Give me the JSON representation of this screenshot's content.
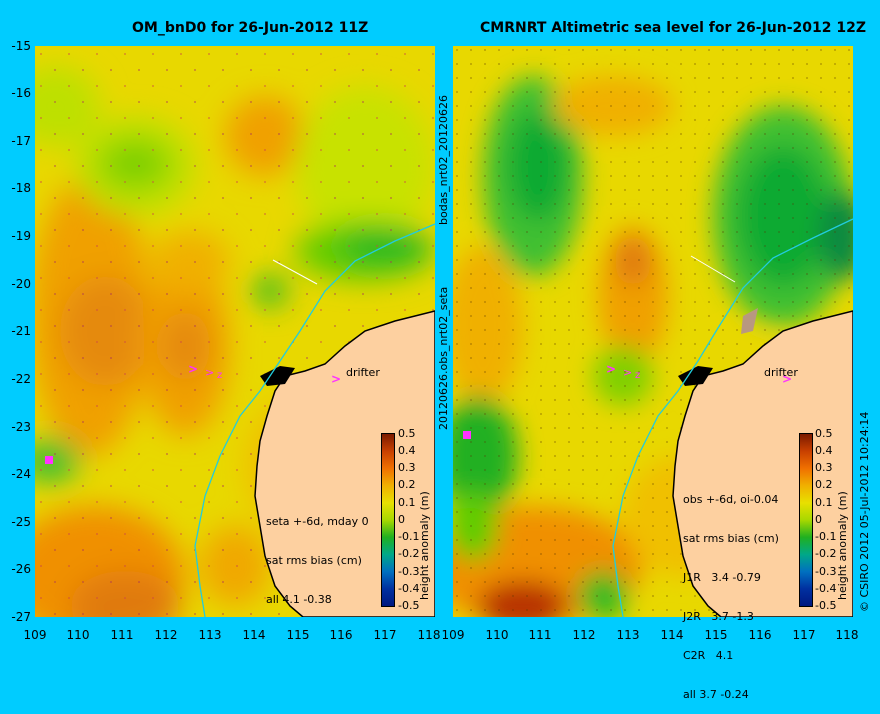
{
  "left_panel": {
    "title": "OM_bnD0 for 26-Jun-2012 11Z",
    "annotations": [
      "seta +-6d, mday 0",
      "sat rms bias (cm)",
      "all 4.1 -0.38"
    ],
    "drifter_label": "drifter"
  },
  "right_panel": {
    "title": "CMRNRT Altimetric sea level  for 26-Jun-2012 12Z",
    "annotations": [
      "obs +-6d, oi-0.04",
      "sat rms bias (cm)",
      "J1R   3.4 -0.79",
      "J2R   3.7 -1.3",
      "C2R   4.1",
      "all 3.7 -0.24"
    ],
    "drifter_label": "drifter"
  },
  "y_ticks": [
    "-15",
    "-16",
    "-17",
    "-18",
    "-19",
    "-20",
    "-21",
    "-22",
    "-23",
    "-24",
    "-25",
    "-26",
    "-27"
  ],
  "x_ticks": [
    "109",
    "110",
    "111",
    "112",
    "113",
    "114",
    "115",
    "116",
    "117",
    "118"
  ],
  "colorbar": {
    "title": "height anomaly (m)",
    "ticks": [
      "0.5",
      "0.4",
      "0.3",
      "0.2",
      "0.1",
      "0",
      "-0.1",
      "-0.2",
      "-0.3",
      "-0.4",
      "-0.5"
    ]
  },
  "side_labels": {
    "middle_top": "bodas_nrt02_20120626",
    "middle_bottom": "20120626.obs_nrt02_seta",
    "right": "© CSIRO 2012   05-Jul-2012 10:24:14"
  },
  "colors": {
    "background": "#00ccff",
    "land": "#fdd0a0",
    "coast_track": "#22ccdd",
    "drifter_marker": "#ff33ff"
  }
}
